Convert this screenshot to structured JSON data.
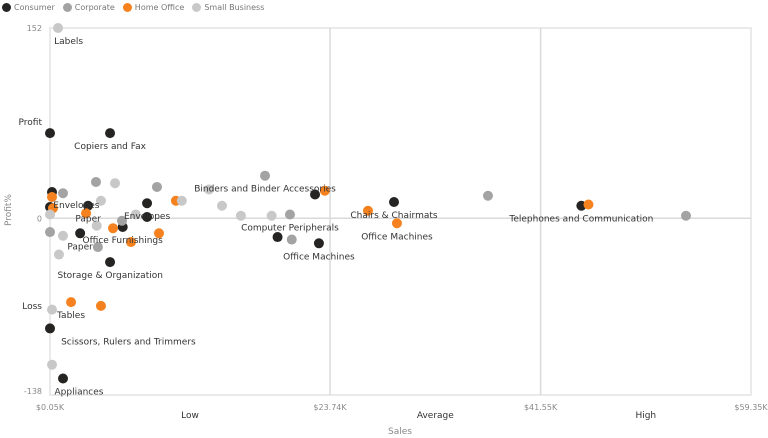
{
  "chart_data": {
    "type": "scatter",
    "title": "",
    "xlabel": "Sales",
    "ylabel": "Profit%",
    "xlim": [
      0.05,
      59.35
    ],
    "ylim": [
      -138,
      152
    ],
    "x_ticks": [
      {
        "value": 0.05,
        "label": "$0.05K"
      },
      {
        "value": 23.74,
        "label": "$23.74K"
      },
      {
        "value": 41.55,
        "label": "$41.55K"
      },
      {
        "value": 59.35,
        "label": "$59.35K"
      }
    ],
    "y_ticks": [
      {
        "value": 152,
        "label": "152"
      },
      {
        "value": 0,
        "label": "0"
      },
      {
        "value": -138,
        "label": "-138"
      }
    ],
    "x_bands": [
      {
        "from": 0.05,
        "to": 23.74,
        "label": "Low"
      },
      {
        "from": 23.74,
        "to": 41.55,
        "label": "Average"
      },
      {
        "from": 41.55,
        "to": 59.35,
        "label": "High"
      }
    ],
    "y_bands": [
      {
        "value": 77,
        "label": "Profit"
      },
      {
        "value": -70,
        "label": "Loss"
      }
    ],
    "reference_lines": {
      "x": [
        23.74,
        41.55
      ],
      "y": [
        0
      ]
    },
    "legend_position": "top-left",
    "series": [
      {
        "name": "Consumer",
        "color": "#252423",
        "points": [
          {
            "x": 0.05,
            "y": 68
          },
          {
            "x": 5.13,
            "y": 68,
            "label": "Copiers and Fax"
          },
          {
            "x": 0.22,
            "y": 21,
            "label": "Envelopes"
          },
          {
            "x": 0.05,
            "y": 9
          },
          {
            "x": 3.27,
            "y": 10,
            "label": "Paper"
          },
          {
            "x": 8.26,
            "y": 1
          },
          {
            "x": 8.26,
            "y": 12,
            "label": "Envelopes"
          },
          {
            "x": 2.6,
            "y": -12,
            "label": "Paper"
          },
          {
            "x": 6.2,
            "y": -7,
            "label": "Office Furnishings"
          },
          {
            "x": 5.13,
            "y": -35,
            "label": "Storage & Organization"
          },
          {
            "x": 0.05,
            "y": -88,
            "label": "Scissors, Rulers and Trimmers"
          },
          {
            "x": 1.15,
            "y": -128,
            "label": "Appliances"
          },
          {
            "x": 22.47,
            "y": 19
          },
          {
            "x": 29.15,
            "y": 13,
            "label": "Chairs & Chairmats"
          },
          {
            "x": 19.3,
            "y": -15
          },
          {
            "x": 22.8,
            "y": -20,
            "label": "Office Machines"
          },
          {
            "x": 45.0,
            "y": 10,
            "label": "Telephones and Communication"
          }
        ]
      },
      {
        "name": "Corporate",
        "color": "#a3a3a3",
        "points": [
          {
            "x": 1.15,
            "y": 20
          },
          {
            "x": 3.94,
            "y": 29
          },
          {
            "x": 9.1,
            "y": 25
          },
          {
            "x": 18.24,
            "y": 34,
            "label": "Binders and Binder Accessories"
          },
          {
            "x": 37.1,
            "y": 18
          },
          {
            "x": 53.85,
            "y": 2
          },
          {
            "x": 20.35,
            "y": 3,
            "label": "Computer Peripherals"
          },
          {
            "x": 20.5,
            "y": -17
          },
          {
            "x": 4.1,
            "y": -23
          },
          {
            "x": 0.05,
            "y": -11
          },
          {
            "x": 6.14,
            "y": -2
          }
        ]
      },
      {
        "name": "Home Office",
        "color": "#f5821f",
        "points": [
          {
            "x": 0.22,
            "y": 17
          },
          {
            "x": 0.3,
            "y": 8
          },
          {
            "x": 3.1,
            "y": 4
          },
          {
            "x": 10.7,
            "y": 14
          },
          {
            "x": 23.3,
            "y": 22
          },
          {
            "x": 26.95,
            "y": 6
          },
          {
            "x": 29.4,
            "y": -4,
            "label": "Office Machines"
          },
          {
            "x": 45.6,
            "y": 11
          },
          {
            "x": 1.83,
            "y": -67,
            "label": "Tables"
          },
          {
            "x": 4.36,
            "y": -70
          },
          {
            "x": 6.9,
            "y": -19
          },
          {
            "x": 9.27,
            "y": -12
          },
          {
            "x": 5.38,
            "y": -8
          }
        ]
      },
      {
        "name": "Small Business",
        "color": "#c8c8c8",
        "points": [
          {
            "x": 0.73,
            "y": 152,
            "label": "Labels"
          },
          {
            "x": 0.22,
            "y": -73
          },
          {
            "x": 0.22,
            "y": -117
          },
          {
            "x": 5.55,
            "y": 28
          },
          {
            "x": 4.36,
            "y": 14
          },
          {
            "x": 14.6,
            "y": 10
          },
          {
            "x": 16.2,
            "y": 2
          },
          {
            "x": 18.8,
            "y": 2
          },
          {
            "x": 11.2,
            "y": 14
          },
          {
            "x": 13.5,
            "y": 23
          },
          {
            "x": 0.81,
            "y": -29
          },
          {
            "x": 1.15,
            "y": -14
          },
          {
            "x": 7.3,
            "y": 3
          },
          {
            "x": 4.0,
            "y": -6
          },
          {
            "x": 0.05,
            "y": 3
          }
        ]
      }
    ]
  }
}
